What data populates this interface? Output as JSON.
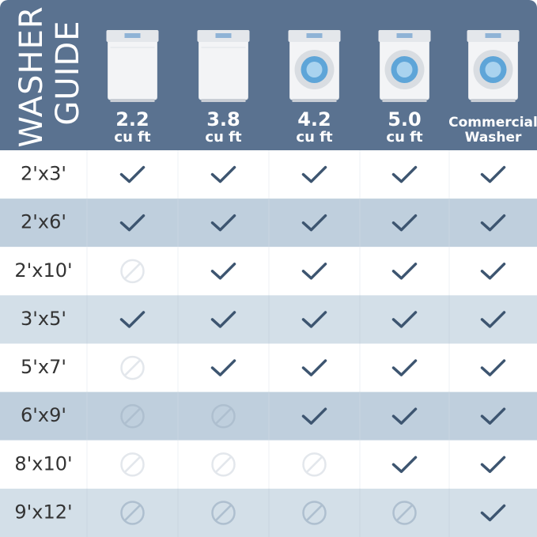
{
  "header": {
    "title": [
      "WASHER",
      "GUIDE"
    ],
    "columns": [
      [
        "2.2",
        "cu ft"
      ],
      [
        "3.8",
        "cu ft"
      ],
      [
        "4.2",
        "cu ft"
      ],
      [
        "5.0",
        "cu ft"
      ],
      [
        "Commercial",
        "Washer"
      ]
    ]
  },
  "table": {
    "rows": [
      {
        "label": "2'x3'",
        "fits": [
          true,
          true,
          true,
          true,
          true
        ]
      },
      {
        "label": "2'x6'",
        "fits": [
          true,
          true,
          true,
          true,
          true
        ]
      },
      {
        "label": "2'x10'",
        "fits": [
          false,
          true,
          true,
          true,
          true
        ]
      },
      {
        "label": "3'x5'",
        "fits": [
          true,
          true,
          true,
          true,
          true
        ]
      },
      {
        "label": "5'x7'",
        "fits": [
          false,
          true,
          true,
          true,
          true
        ]
      },
      {
        "label": "6'x9'",
        "fits": [
          false,
          false,
          true,
          true,
          true
        ]
      },
      {
        "label": "8'x10'",
        "fits": [
          false,
          false,
          false,
          true,
          true
        ]
      },
      {
        "label": "9'x12'",
        "fits": [
          false,
          false,
          false,
          false,
          true
        ]
      }
    ]
  }
}
